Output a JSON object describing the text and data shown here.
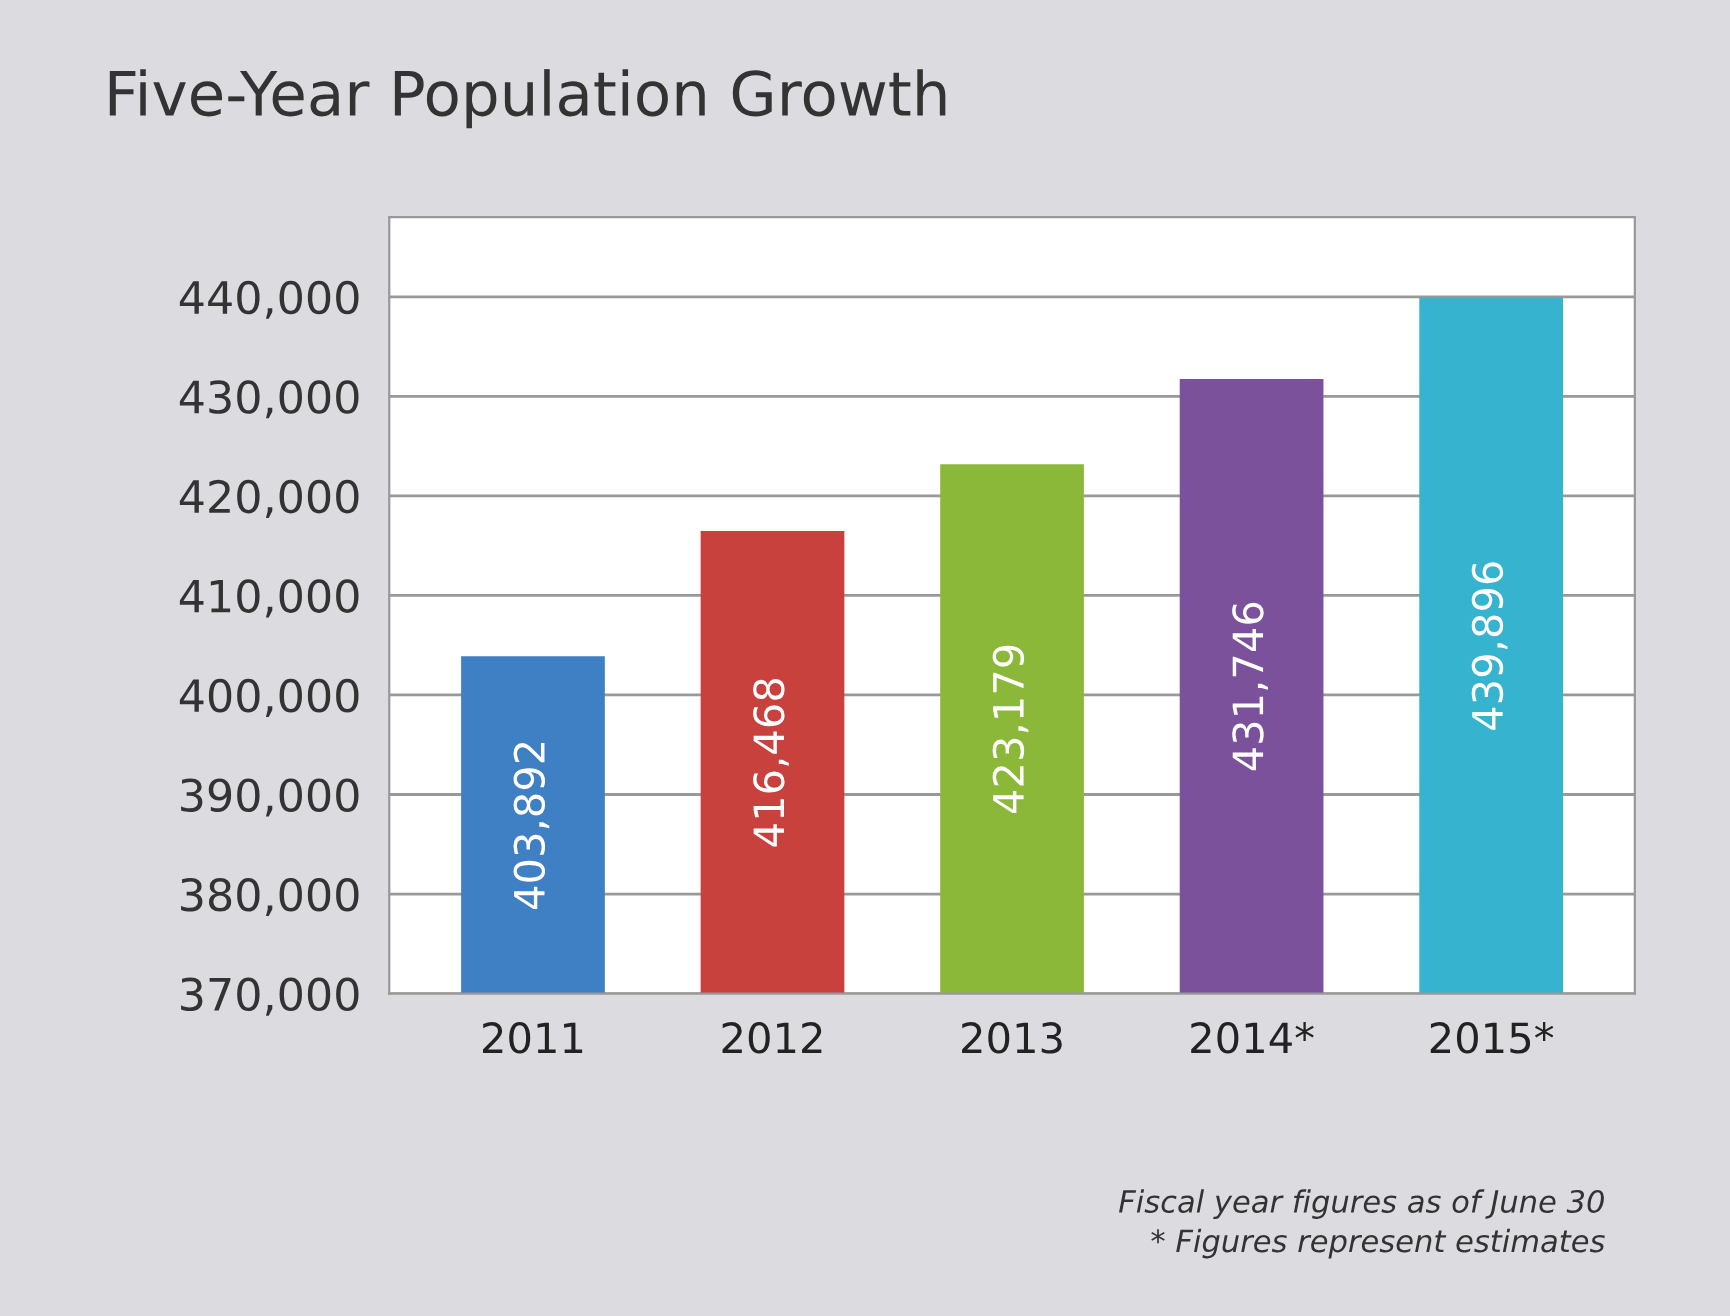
{
  "chart_data": {
    "type": "bar",
    "title": "Five-Year Population Growth",
    "categories": [
      "2011",
      "2012",
      "2013",
      "2014*",
      "2015*"
    ],
    "values": [
      403892,
      416468,
      423179,
      431746,
      439896
    ],
    "colors": [
      "#3f7fc4",
      "#c8413d",
      "#8cb83a",
      "#7b519b",
      "#35b3cf"
    ],
    "value_labels": [
      "403,892",
      "416,468",
      "423,179",
      "431,746",
      "439,896"
    ],
    "ylim": [
      370000,
      448000
    ],
    "yticks": [
      {
        "value": 370000,
        "label": "370,000"
      },
      {
        "value": 380000,
        "label": "380,000"
      },
      {
        "value": 390000,
        "label": "390,000"
      },
      {
        "value": 400000,
        "label": "400,000"
      },
      {
        "value": 410000,
        "label": "410,000"
      },
      {
        "value": 420000,
        "label": "420,000"
      },
      {
        "value": 430000,
        "label": "430,000"
      },
      {
        "value": 440000,
        "label": "440,000"
      }
    ],
    "grid": "y",
    "annotations": [
      "Fiscal year figures as of June 30",
      "* Figures represent estimates"
    ]
  }
}
